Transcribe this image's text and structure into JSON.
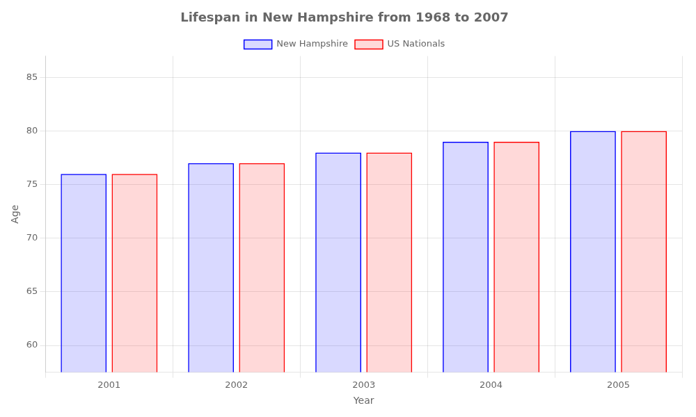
{
  "chart_data": {
    "type": "bar",
    "title": "Lifespan in New Hampshire from 1968 to 2007",
    "x_label": "Year",
    "y_label": "Age",
    "categories": [
      "2001",
      "2002",
      "2003",
      "2004",
      "2005"
    ],
    "series": [
      {
        "name": "New Hampshire",
        "color": "#0000ff",
        "values": [
          76,
          77,
          78,
          79,
          80
        ]
      },
      {
        "name": "US Nationals",
        "color": "#ff0000",
        "values": [
          76,
          77,
          78,
          79,
          80
        ]
      }
    ],
    "ylim": [
      57.5,
      87
    ],
    "yticks": [
      60,
      65,
      70,
      75,
      80,
      85
    ],
    "grid": true,
    "legend": "top"
  }
}
